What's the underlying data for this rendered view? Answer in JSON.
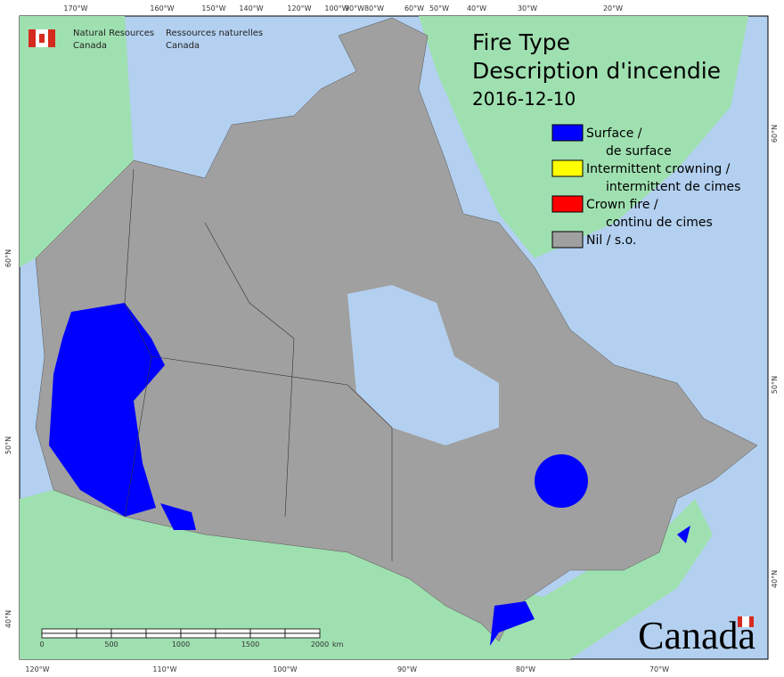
{
  "header": {
    "agency_en": [
      "Natural Resources",
      "Canada"
    ],
    "agency_fr": [
      "Ressources naturelles",
      "Canada"
    ]
  },
  "title": {
    "line1": "Fire Type",
    "line2": "Description d'incendie",
    "date": "2016-12-10"
  },
  "legend": [
    {
      "label": [
        "Surface /",
        "de surface"
      ],
      "color": "#0000ff"
    },
    {
      "label": [
        "Intermittent crowning /",
        "intermittent de cimes"
      ],
      "color": "#ffff00"
    },
    {
      "label": [
        "Crown fire /",
        "continu de cimes"
      ],
      "color": "#ff0000"
    },
    {
      "label": [
        "Nil / s.o."
      ],
      "color": "#a0a0a0"
    }
  ],
  "graticule": {
    "top": [
      "170°W",
      "160°W",
      "150°W",
      "140°W",
      "120°W",
      "100°W",
      "90°W",
      "80°W",
      "60°W",
      "50°W",
      "40°W",
      "30°W",
      "20°W"
    ],
    "bottom": [
      "120°W",
      "110°W",
      "100°W",
      "90°W",
      "80°W",
      "70°W"
    ],
    "left": [
      "60°N",
      "50°N",
      "40°N"
    ],
    "right": [
      "60°N",
      "50°N",
      "40°N"
    ]
  },
  "scale_bar": {
    "labels": [
      "0",
      "500",
      "1000",
      "1500",
      "2000"
    ],
    "unit": "km"
  },
  "wordmark": "Canada"
}
